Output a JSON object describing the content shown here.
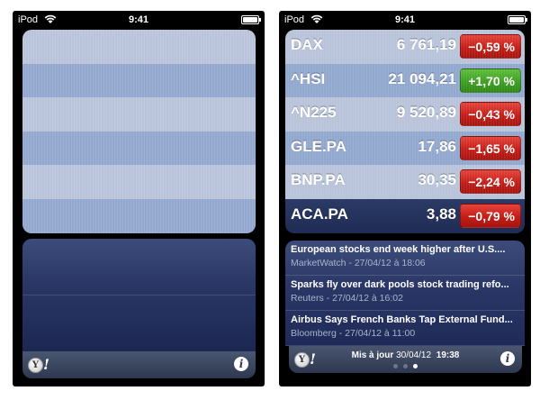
{
  "status": {
    "carrier": "iPod",
    "time": "9:41"
  },
  "colors": {
    "positive": "#3e9e22",
    "negative": "#c41d17",
    "row_light": "#b9c3d9",
    "row_dark": "#93a8cf",
    "selected_row": "#1f2c55"
  },
  "left": {
    "stripes": 6
  },
  "right": {
    "stocks": [
      {
        "symbol": "DAX",
        "price": "6 761,19",
        "change": "−0,59 %",
        "direction": "neg"
      },
      {
        "symbol": "^HSI",
        "price": "21 094,21",
        "change": "+1,70 %",
        "direction": "pos"
      },
      {
        "symbol": "^N225",
        "price": "9 520,89",
        "change": "−0,43 %",
        "direction": "neg"
      },
      {
        "symbol": "GLE.PA",
        "price": "17,86",
        "change": "−1,65 %",
        "direction": "neg"
      },
      {
        "symbol": "BNP.PA",
        "price": "30,35",
        "change": "−2,24 %",
        "direction": "neg"
      },
      {
        "symbol": "ACA.PA",
        "price": "3,88",
        "change": "−0,79 %",
        "direction": "neg"
      }
    ],
    "news": [
      {
        "title": "European stocks end week higher after U.S....",
        "source": "MarketWatch",
        "date": "27/04/12 à 18:06"
      },
      {
        "title": "Sparks fly over dark pools stock trading refo...",
        "source": "Reuters",
        "date": "27/04/12 à 16:02"
      },
      {
        "title": "Airbus Says French Banks Tap External Fund...",
        "source": "Bloomberg",
        "date": "27/04/12 à 11:00"
      }
    ],
    "update": {
      "label": "Mis à jour",
      "date": "30/04/12",
      "time": "19:38"
    },
    "pages": {
      "count": 3,
      "active": 2
    }
  },
  "bottombar": {
    "logo_letter": "Y",
    "logo_bang": "!",
    "info_label": "i"
  },
  "icons": {
    "wifi": "wifi-icon",
    "battery": "battery-icon",
    "info": "info-icon",
    "logo": "yahoo-logo"
  }
}
